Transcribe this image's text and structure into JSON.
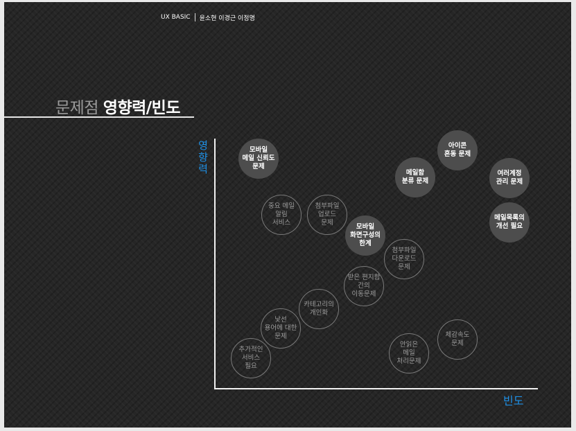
{
  "header": {
    "course": "UX BASIC",
    "authors": "윤소현 이경근 이정명"
  },
  "title": {
    "part1": "문제점",
    "part2": "영향력/빈도"
  },
  "axes": {
    "y_label": [
      "영",
      "향",
      "력"
    ],
    "x_label": "빈도"
  },
  "issues": {
    "mobile_mail_reliability": {
      "label": "모바일\n메일 신뢰도\n문제",
      "style": "filled"
    },
    "icon_confusion": {
      "label": "아이콘\n혼동 문제",
      "style": "filled"
    },
    "mailbox_classification": {
      "label": "메일함\n분류 문제",
      "style": "filled"
    },
    "multi_account": {
      "label": "여러계정\n관리 문제",
      "style": "filled"
    },
    "mail_list_improvement": {
      "label": "메일목록의\n개선 필요",
      "style": "filled"
    },
    "important_mail_alert": {
      "label": "중요 메일\n알림\n서비스",
      "style": "outline"
    },
    "attachment_upload": {
      "label": "첨부파일\n업로드\n문제",
      "style": "outline"
    },
    "mobile_layout_limit": {
      "label": "모바일\n화면구성의\n한계",
      "style": "filled"
    },
    "attachment_download": {
      "label": "첨부파일\n다운로드\n문제",
      "style": "outline"
    },
    "inbox_move": {
      "label": "받은 편지함\n간의\n이동문제",
      "style": "outline"
    },
    "category_personalize": {
      "label": "카테고리의\n개인화",
      "style": "outline"
    },
    "unfamiliar_terms": {
      "label": "낯선\n용어에 대한\n문제",
      "style": "outline"
    },
    "additional_service": {
      "label": "추가적인\n서비스\n필요",
      "style": "outline"
    },
    "unread_mail": {
      "label": "안읽은\n메일\n처리문제",
      "style": "outline"
    },
    "perceived_speed": {
      "label": "체감속도\n문제",
      "style": "outline"
    }
  }
}
